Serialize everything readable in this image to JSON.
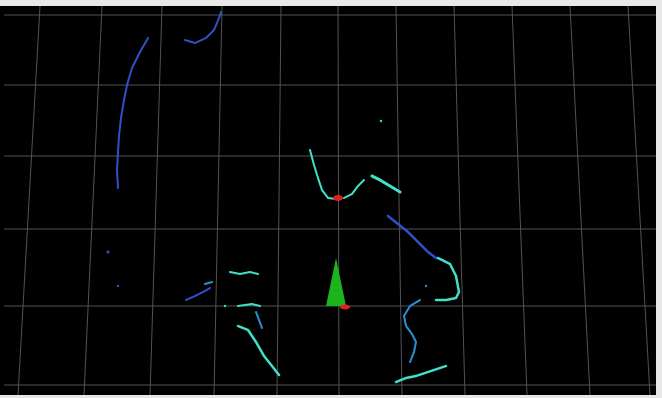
{
  "viewer": {
    "background": "#000000",
    "grid_color": "#6e6e6e",
    "grid_visible": true,
    "frame_color": "#f2f2f2"
  },
  "robot": {
    "heading_marker_color": "#1db31d",
    "origin_marker_color": "#e02020"
  },
  "target_marker": {
    "color": "#e02020"
  },
  "scan_colors": {
    "far": "#2f50c8",
    "mid": "#2a8fd6",
    "near": "#3fe0c8"
  }
}
